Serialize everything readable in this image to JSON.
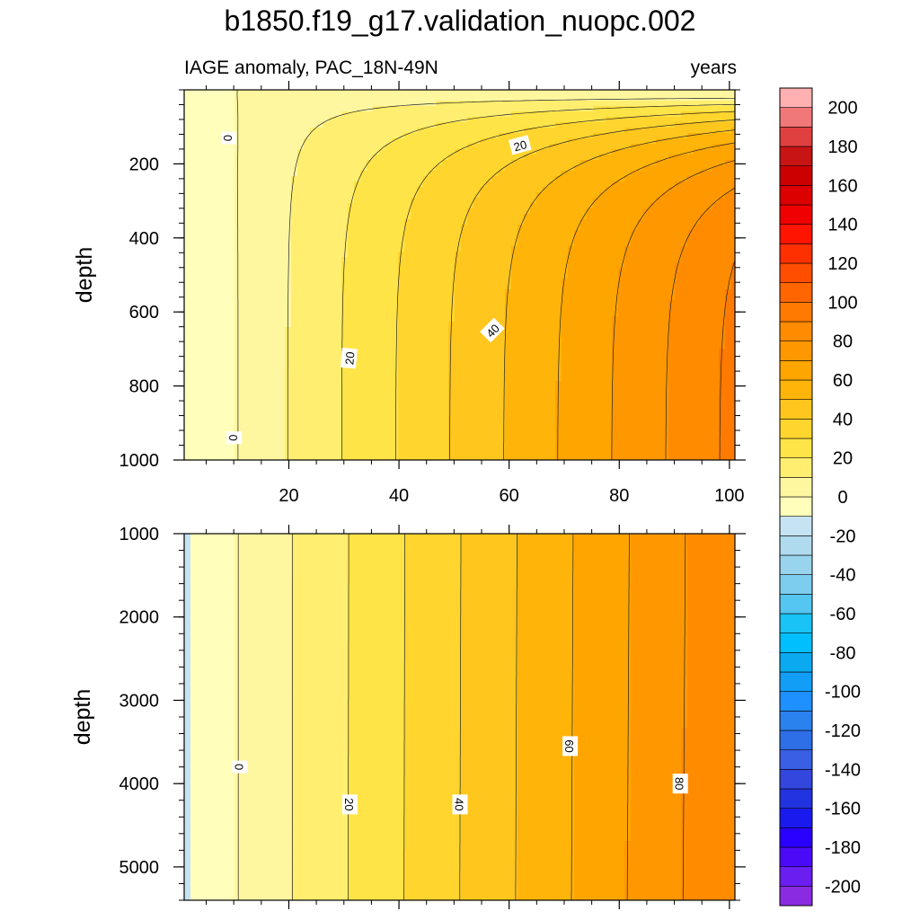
{
  "chart_data": {
    "title": "b1850.f19_g17.validation_nuopc.002",
    "left_string": "IAGE anomaly, PAC_18N-49N",
    "right_string": "years",
    "type": "contour",
    "x": {
      "range": [
        1,
        101
      ],
      "ticks": [
        20,
        40,
        60,
        80,
        100
      ],
      "tick_labels": [
        "20",
        "40",
        "60",
        "80",
        "100"
      ]
    },
    "panels": [
      {
        "name": "upper-ocean",
        "ylabel": "depth",
        "ylim": [
          0,
          1000
        ],
        "y_inverted": true,
        "y_ticks": [
          200,
          400,
          600,
          800,
          1000
        ],
        "y_tick_labels": [
          "200",
          "400",
          "600",
          "800",
          "1000"
        ],
        "contour_labels": [
          {
            "text": "0",
            "x": 9,
            "y": 130,
            "rot": 90
          },
          {
            "text": "20",
            "x": 62,
            "y": 150,
            "rot": -15
          },
          {
            "text": "20",
            "x": 31,
            "y": 725,
            "rot": -85
          },
          {
            "text": "40",
            "x": 57,
            "y": 650,
            "rot": -45
          },
          {
            "text": "0",
            "x": 10,
            "y": 940,
            "rot": 90
          }
        ]
      },
      {
        "name": "deep-ocean",
        "ylabel": "depth",
        "ylim": [
          1000,
          5400
        ],
        "y_inverted": true,
        "y_ticks": [
          1000,
          2000,
          3000,
          4000,
          5000
        ],
        "y_tick_labels": [
          "1000",
          "2000",
          "3000",
          "4000",
          "5000"
        ],
        "contour_labels": [
          {
            "text": "0",
            "x": 11,
            "y": 3800,
            "rot": 90
          },
          {
            "text": "20",
            "x": 31,
            "y": 4250,
            "rot": 90
          },
          {
            "text": "40",
            "x": 51,
            "y": 4250,
            "rot": 90
          },
          {
            "text": "60",
            "x": 71,
            "y": 3550,
            "rot": 90
          },
          {
            "text": "80",
            "x": 91,
            "y": 4000,
            "rot": 90
          }
        ]
      }
    ],
    "colorbar": {
      "levels": [
        -200,
        -190,
        -180,
        -170,
        -160,
        -150,
        -140,
        -130,
        -120,
        -110,
        -100,
        -90,
        -80,
        -70,
        -60,
        -50,
        -40,
        -30,
        -20,
        -10,
        0,
        10,
        20,
        30,
        40,
        50,
        60,
        70,
        80,
        90,
        100,
        110,
        120,
        130,
        140,
        150,
        160,
        170,
        180,
        190,
        200
      ],
      "colors": [
        "#8a2be2",
        "#6a1ef0",
        "#4b0af7",
        "#2a00ff",
        "#1a1aef",
        "#2233e0",
        "#3346dd",
        "#3a5ee4",
        "#2e6fe8",
        "#2a82ee",
        "#1e90ff",
        "#129ef7",
        "#0aaaf0",
        "#00bfff",
        "#19c3f5",
        "#55c6f0",
        "#7dcdee",
        "#98d4ec",
        "#b0daee",
        "#c5e3f3",
        "#ffffbb",
        "#fff7a0",
        "#ffee70",
        "#ffe448",
        "#ffd52e",
        "#ffc61e",
        "#ffb40a",
        "#ffa500",
        "#ff9800",
        "#ff8c00",
        "#ff7a00",
        "#ff6600",
        "#ff4e00",
        "#ff3000",
        "#ff1400",
        "#f00000",
        "#dd0000",
        "#cc0000",
        "#c81414",
        "#e04040",
        "#f07878",
        "#ffb0b0"
      ],
      "tick_labels": [
        "-200",
        "-180",
        "-160",
        "-140",
        "-120",
        "-100",
        "-80",
        "-60",
        "-40",
        "-20",
        "0",
        "20",
        "40",
        "60",
        "80",
        "100",
        "120",
        "140",
        "160",
        "180",
        "200"
      ],
      "tick_values": [
        -200,
        -180,
        -160,
        -140,
        -120,
        -100,
        -80,
        -60,
        -40,
        -20,
        0,
        20,
        40,
        60,
        80,
        100,
        120,
        140,
        160,
        180,
        200
      ]
    }
  }
}
